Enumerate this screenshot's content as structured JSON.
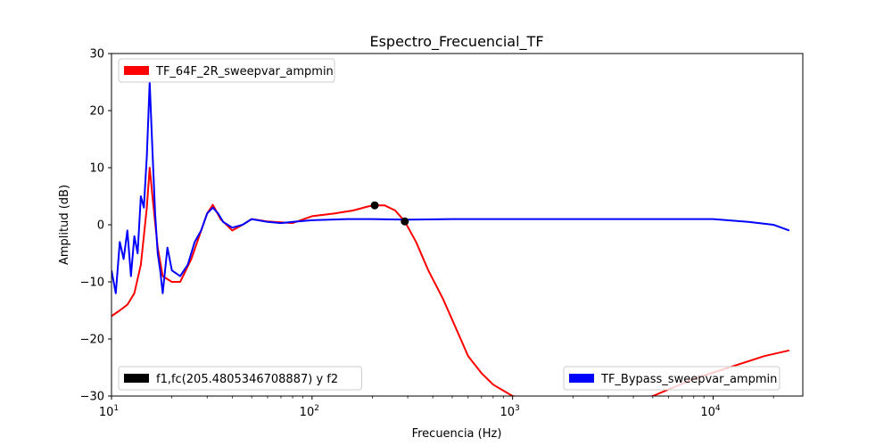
{
  "chart_data": {
    "type": "line",
    "title": "Espectro_Frecuencial_TF",
    "xlabel": "Frecuencia (Hz)",
    "ylabel": "Amplitud (dB)",
    "x_scale": "log",
    "xlim": [
      10,
      28000
    ],
    "ylim": [
      -30,
      30
    ],
    "x_ticks": [
      10,
      100,
      1000,
      10000
    ],
    "x_tick_labels": [
      [
        "10",
        "1"
      ],
      [
        "10",
        "2"
      ],
      [
        "10",
        "3"
      ],
      [
        "10",
        "4"
      ]
    ],
    "y_ticks": [
      -30,
      -20,
      -10,
      0,
      10,
      20,
      30
    ],
    "y_tick_labels": [
      "−30",
      "−20",
      "−10",
      "0",
      "10",
      "20",
      "30"
    ],
    "grid": false,
    "series": [
      {
        "name": "TF_64F_2R_sweepvar_ampmin",
        "color": "#ff0000",
        "legend_position": "top-left",
        "x": [
          10,
          11,
          12,
          13,
          14,
          15,
          15.5,
          16,
          17,
          18,
          20,
          22,
          25,
          28,
          30,
          32,
          35,
          40,
          45,
          50,
          60,
          80,
          100,
          130,
          160,
          190,
          205,
          230,
          260,
          290,
          330,
          380,
          450,
          520,
          600,
          700,
          800,
          1000,
          1500,
          2000,
          3000,
          5000,
          8000,
          12000,
          18000,
          24000
        ],
        "y": [
          -16,
          -15,
          -14,
          -12,
          -7,
          3,
          10,
          5,
          -4,
          -9,
          -10,
          -10,
          -6,
          -1,
          2,
          3.5,
          1,
          -1,
          0,
          1,
          0.6,
          0.3,
          1.5,
          2,
          2.5,
          3.2,
          3.4,
          3.4,
          2.5,
          0.6,
          -3,
          -8,
          -13,
          -18,
          -23,
          -26,
          -28,
          -30,
          -31,
          -32,
          -32,
          -30,
          -27,
          -25,
          -23,
          -22
        ]
      },
      {
        "name": "TF_Bypass_sweepvar_ampmin",
        "color": "#0000ff",
        "legend_position": "bottom-right",
        "x": [
          10,
          10.5,
          11,
          11.5,
          12,
          12.5,
          13,
          13.5,
          14,
          14.5,
          15,
          15.5,
          16,
          16.5,
          17,
          17.5,
          18,
          19,
          20,
          22,
          24,
          26,
          28,
          30,
          32,
          34,
          36,
          40,
          45,
          50,
          60,
          70,
          80,
          100,
          150,
          200,
          300,
          500,
          1000,
          2000,
          5000,
          10000,
          15000,
          20000,
          24000
        ],
        "y": [
          -8,
          -12,
          -3,
          -6,
          -1,
          -9,
          -2,
          -5,
          5,
          3,
          12,
          25,
          13,
          2,
          -5,
          -8,
          -12,
          -4,
          -8,
          -9,
          -7,
          -3,
          -1,
          2,
          3,
          2,
          0.5,
          -0.5,
          0,
          1,
          0.5,
          0.3,
          0.5,
          0.8,
          1,
          1,
          0.9,
          1,
          1,
          1,
          1,
          1,
          0.5,
          0,
          -1
        ]
      },
      {
        "name": "f1,fc(205.4805346708887) y f2",
        "color": "#000000",
        "legend_position": "bottom-left",
        "type": "scatter",
        "x": [
          205.48,
          290
        ],
        "y": [
          3.4,
          0.6
        ]
      }
    ]
  }
}
